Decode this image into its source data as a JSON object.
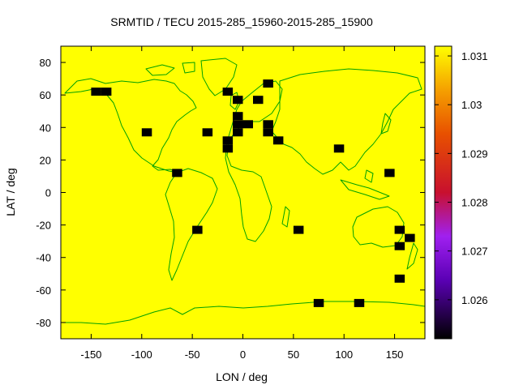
{
  "chart_data": {
    "type": "heatmap",
    "title": "SRMTID / TECU 2015-285_15960-2015-285_15900",
    "xlabel": "LON / deg",
    "ylabel": "LAT / deg",
    "xlim": [
      -180,
      180
    ],
    "ylim": [
      -90,
      90
    ],
    "x_ticks": [
      -150,
      -100,
      -50,
      0,
      50,
      100,
      150
    ],
    "y_ticks": [
      80,
      60,
      40,
      20,
      0,
      -20,
      -40,
      -60,
      -80
    ],
    "background_value": 1.031,
    "cell_size_deg": [
      10,
      5
    ],
    "grid": false,
    "colorbar": {
      "range": [
        1.0252,
        1.0312
      ],
      "ticks": [
        1.026,
        1.027,
        1.028,
        1.029,
        1.03,
        1.031
      ],
      "tick_labels": [
        "1.026",
        "1.027",
        "1.028",
        "1.029",
        "1.03",
        "1.031"
      ],
      "palette": [
        "#000000",
        "#5a00b4",
        "#a020f0",
        "#c8102e",
        "#e85000",
        "#f5a000",
        "#ffff00"
      ]
    },
    "coastline_color": "#00a000",
    "stations": [
      {
        "lon": -145,
        "lat": 62,
        "value": 1.025
      },
      {
        "lon": -135,
        "lat": 62,
        "value": 1.025
      },
      {
        "lon": -95,
        "lat": 37,
        "value": 1.025
      },
      {
        "lon": -65,
        "lat": 12,
        "value": 1.025
      },
      {
        "lon": -45,
        "lat": -23,
        "value": 1.025
      },
      {
        "lon": -35,
        "lat": 37,
        "value": 1.025
      },
      {
        "lon": -15,
        "lat": 62,
        "value": 1.025
      },
      {
        "lon": -15,
        "lat": 32,
        "value": 1.025
      },
      {
        "lon": -15,
        "lat": 27,
        "value": 1.025
      },
      {
        "lon": -5,
        "lat": 57,
        "value": 1.025
      },
      {
        "lon": -5,
        "lat": 47,
        "value": 1.025
      },
      {
        "lon": -5,
        "lat": 42,
        "value": 1.025
      },
      {
        "lon": -5,
        "lat": 37,
        "value": 1.025
      },
      {
        "lon": 5,
        "lat": 42,
        "value": 1.025
      },
      {
        "lon": 15,
        "lat": 57,
        "value": 1.025
      },
      {
        "lon": 25,
        "lat": 67,
        "value": 1.025
      },
      {
        "lon": 25,
        "lat": 42,
        "value": 1.025
      },
      {
        "lon": 25,
        "lat": 37,
        "value": 1.025
      },
      {
        "lon": 35,
        "lat": 32,
        "value": 1.025
      },
      {
        "lon": 55,
        "lat": -23,
        "value": 1.025
      },
      {
        "lon": 75,
        "lat": -68,
        "value": 1.025
      },
      {
        "lon": 95,
        "lat": 27,
        "value": 1.025
      },
      {
        "lon": 115,
        "lat": -68,
        "value": 1.025
      },
      {
        "lon": 145,
        "lat": 12,
        "value": 1.025
      },
      {
        "lon": 155,
        "lat": -23,
        "value": 1.025
      },
      {
        "lon": 155,
        "lat": -33,
        "value": 1.025
      },
      {
        "lon": 155,
        "lat": -53,
        "value": 1.025
      },
      {
        "lon": 165,
        "lat": -28,
        "value": 1.025
      }
    ]
  }
}
